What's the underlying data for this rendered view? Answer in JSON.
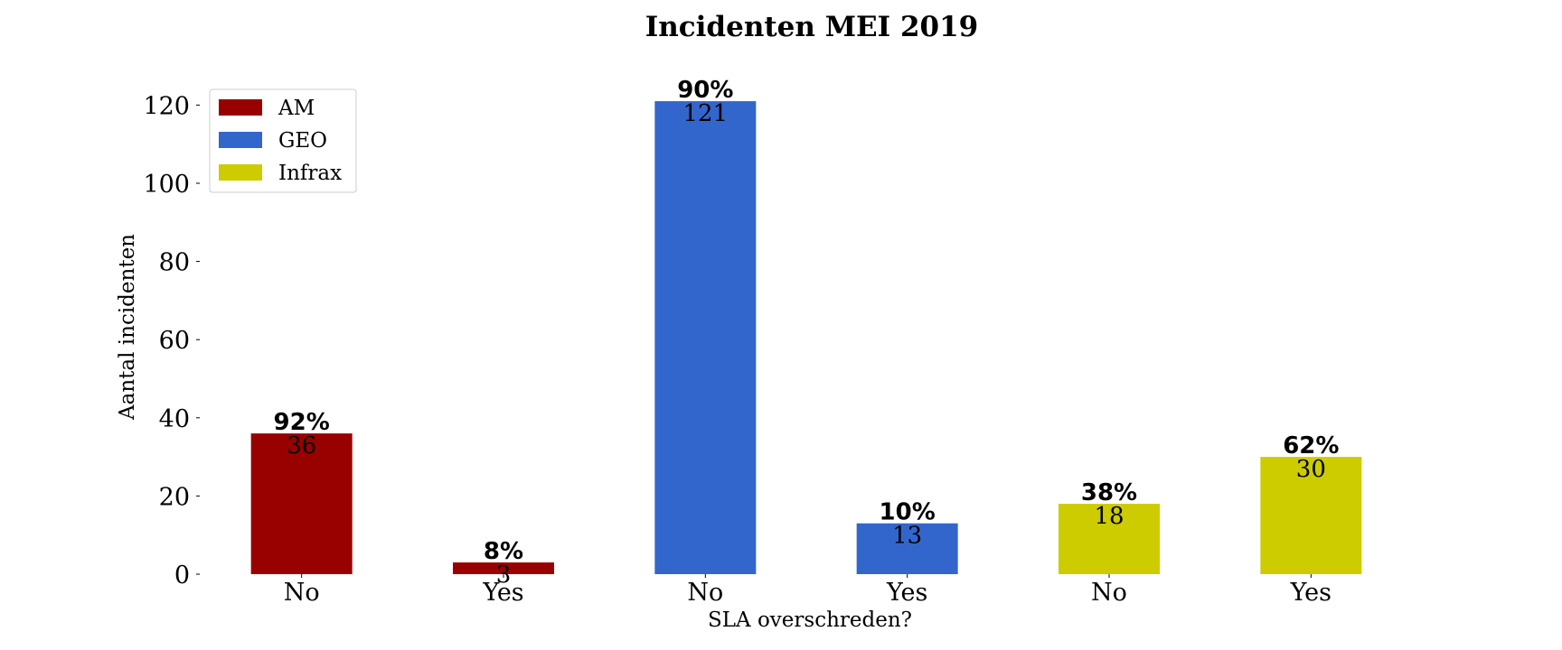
{
  "chart_data": {
    "type": "bar",
    "title": "Incidenten MEI 2019",
    "xlabel": "SLA overschreden?",
    "ylabel": "Aantal incidenten",
    "ylim": [
      0,
      128
    ],
    "yticks": [
      0,
      20,
      40,
      60,
      80,
      100,
      120
    ],
    "grid": false,
    "legend_position": "top-left",
    "series": [
      {
        "name": "AM",
        "color": "#990000"
      },
      {
        "name": "GEO",
        "color": "#3366cc"
      },
      {
        "name": "Infrax",
        "color": "#cccc00"
      }
    ],
    "bars": [
      {
        "category": "No",
        "series": "AM",
        "value": 36,
        "percent_label": "92%"
      },
      {
        "category": "Yes",
        "series": "AM",
        "value": 3,
        "percent_label": "8%"
      },
      {
        "category": "No",
        "series": "GEO",
        "value": 121,
        "percent_label": "90%"
      },
      {
        "category": "Yes",
        "series": "GEO",
        "value": 13,
        "percent_label": "10%"
      },
      {
        "category": "No",
        "series": "Infrax",
        "value": 18,
        "percent_label": "38%"
      },
      {
        "category": "Yes",
        "series": "Infrax",
        "value": 30,
        "percent_label": "62%"
      }
    ]
  }
}
